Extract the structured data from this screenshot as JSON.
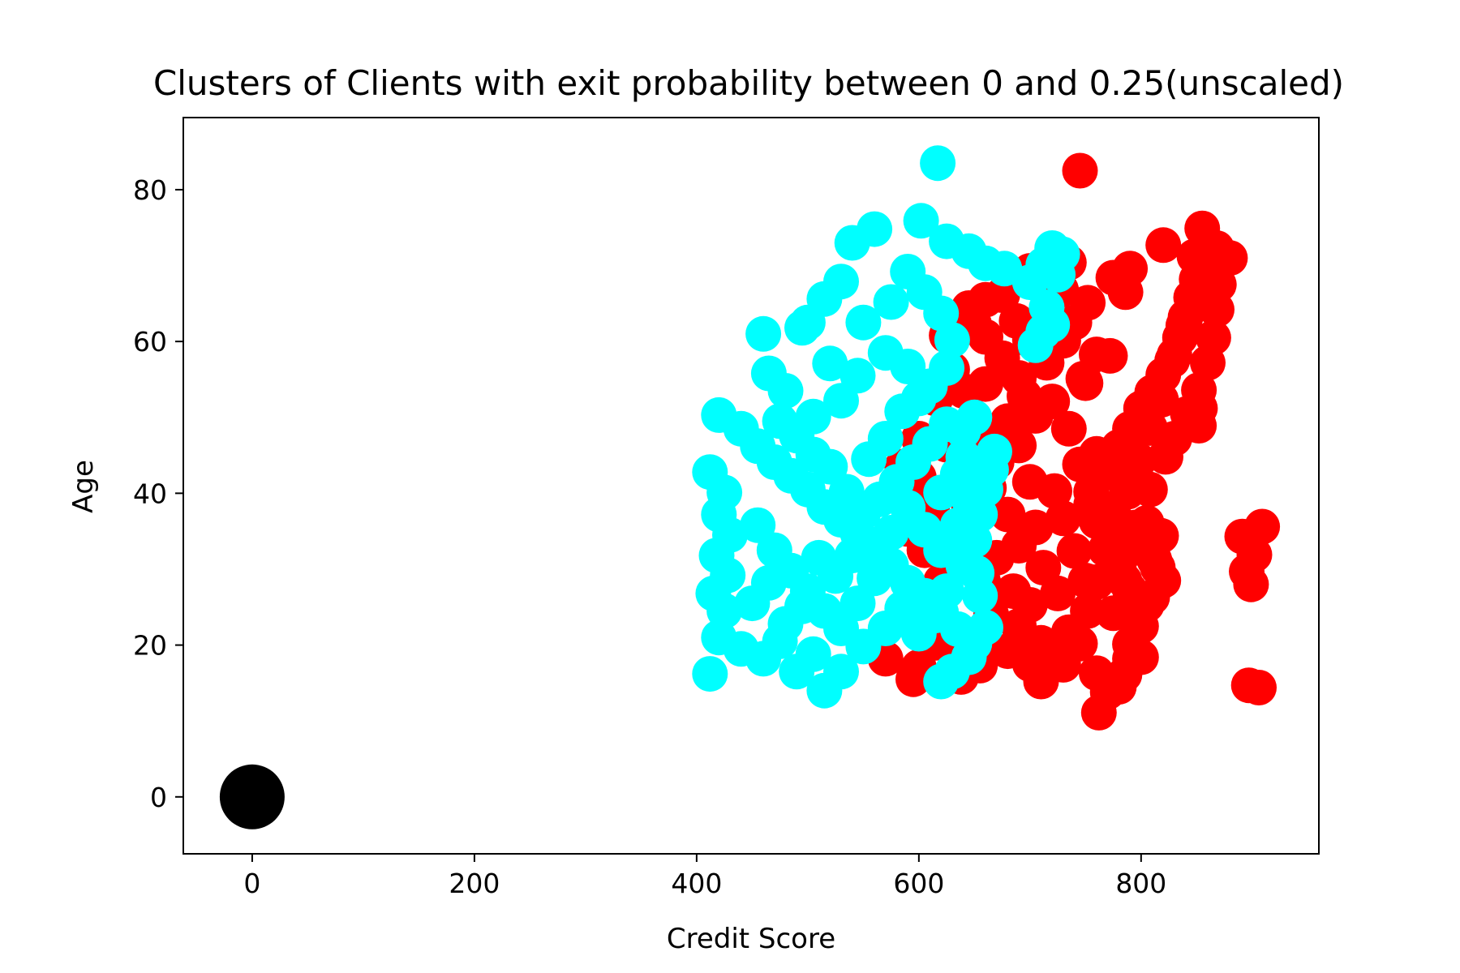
{
  "chart_data": {
    "type": "scatter",
    "title": "Clusters of Clients with exit probability between 0 and 0.25(unscaled)",
    "xlabel": "Credit Score",
    "ylabel": "Age",
    "xlim": [
      -62,
      960
    ],
    "ylim": [
      -7.5,
      89.5
    ],
    "xticks": [
      0,
      200,
      400,
      600,
      800
    ],
    "yticks": [
      0,
      20,
      40,
      60,
      80
    ],
    "grid": false,
    "series": [
      {
        "color": "#ff0000",
        "points": [
          [
            745,
            82.5
          ],
          [
            820,
            72.7
          ],
          [
            855,
            74.9
          ],
          [
            880,
            71.0
          ],
          [
            868,
            72.3
          ],
          [
            790,
            69.6
          ],
          [
            775,
            68.4
          ],
          [
            735,
            70.4
          ],
          [
            700,
            69.3
          ],
          [
            690,
            68.2
          ],
          [
            752,
            65.1
          ],
          [
            786,
            66.5
          ],
          [
            728,
            66.8
          ],
          [
            715,
            63.3
          ],
          [
            688,
            62.7
          ],
          [
            645,
            64.4
          ],
          [
            660,
            60.6
          ],
          [
            700,
            60.2
          ],
          [
            740,
            62.5
          ],
          [
            760,
            58.3
          ],
          [
            772,
            58.1
          ],
          [
            675,
            57.8
          ],
          [
            690,
            55.2
          ],
          [
            660,
            54.4
          ],
          [
            640,
            53.5
          ],
          [
            720,
            52.1
          ],
          [
            750,
            54.5
          ],
          [
            705,
            50.2
          ],
          [
            680,
            49.5
          ],
          [
            655,
            48.3
          ],
          [
            735,
            48.5
          ],
          [
            760,
            45.2
          ],
          [
            690,
            46.3
          ],
          [
            670,
            44.1
          ],
          [
            700,
            41.5
          ],
          [
            722,
            40.3
          ],
          [
            745,
            43.8
          ],
          [
            663,
            40.7
          ],
          [
            680,
            37.2
          ],
          [
            705,
            35.5
          ],
          [
            730,
            36.7
          ],
          [
            755,
            38.5
          ],
          [
            690,
            33.1
          ],
          [
            670,
            31.5
          ],
          [
            712,
            30.2
          ],
          [
            740,
            32.4
          ],
          [
            658,
            28.3
          ],
          [
            685,
            27.1
          ],
          [
            700,
            25.3
          ],
          [
            725,
            26.8
          ],
          [
            750,
            28.5
          ],
          [
            665,
            24.1
          ],
          [
            690,
            22.5
          ],
          [
            710,
            20.3
          ],
          [
            735,
            21.7
          ],
          [
            680,
            19.2
          ],
          [
            700,
            17.5
          ],
          [
            720,
            18.1
          ],
          [
            655,
            17.3
          ],
          [
            638,
            15.8
          ],
          [
            600,
            17.1
          ],
          [
            595,
            15.5
          ],
          [
            570,
            18.2
          ],
          [
            615,
            20.3
          ],
          [
            630,
            22.2
          ],
          [
            610,
            25.1
          ],
          [
            620,
            28.4
          ],
          [
            605,
            32.5
          ],
          [
            590,
            35.3
          ],
          [
            612,
            38.2
          ],
          [
            585,
            43.5
          ],
          [
            600,
            47.2
          ],
          [
            600,
            42.1
          ],
          [
            625,
            46.4
          ],
          [
            615,
            52.5
          ],
          [
            630,
            56.3
          ],
          [
            625,
            60.8
          ],
          [
            650,
            62.2
          ],
          [
            660,
            65.5
          ],
          [
            675,
            66.1
          ],
          [
            805,
            25.3
          ],
          [
            790,
            27.2
          ],
          [
            780,
            30.1
          ],
          [
            770,
            33.1
          ],
          [
            760,
            36.3
          ],
          [
            755,
            40.2
          ],
          [
            768,
            43.5
          ],
          [
            780,
            46.1
          ],
          [
            790,
            48.5
          ],
          [
            800,
            51.2
          ],
          [
            810,
            53.3
          ],
          [
            820,
            55.6
          ],
          [
            830,
            58.2
          ],
          [
            835,
            60.5
          ],
          [
            840,
            63.2
          ],
          [
            845,
            65.8
          ],
          [
            850,
            68.2
          ],
          [
            838,
            62.1
          ],
          [
            828,
            57.5
          ],
          [
            818,
            52.3
          ],
          [
            808,
            48.6
          ],
          [
            798,
            44.3
          ],
          [
            788,
            40.2
          ],
          [
            778,
            36.4
          ],
          [
            768,
            32.6
          ],
          [
            760,
            28.3
          ],
          [
            752,
            24.5
          ],
          [
            745,
            20.2
          ],
          [
            760,
            16.3
          ],
          [
            770,
            13.8
          ],
          [
            762,
            11.1
          ],
          [
            780,
            14.5
          ],
          [
            790,
            18.2
          ],
          [
            800,
            22.5
          ],
          [
            810,
            26.3
          ],
          [
            815,
            30.2
          ],
          [
            818,
            34.4
          ],
          [
            805,
            36.1
          ],
          [
            795,
            32.8
          ],
          [
            785,
            28.5
          ],
          [
            775,
            24.2
          ],
          [
            790,
            20.1
          ],
          [
            808,
            40.5
          ],
          [
            822,
            44.8
          ],
          [
            830,
            47.2
          ],
          [
            842,
            50.5
          ],
          [
            852,
            53.6
          ],
          [
            860,
            57.2
          ],
          [
            865,
            60.5
          ],
          [
            868,
            64.2
          ],
          [
            870,
            67.5
          ],
          [
            860,
            70.3
          ],
          [
            848,
            71.2
          ],
          [
            853,
            51.2
          ],
          [
            852,
            48.9
          ],
          [
            891,
            34.3
          ],
          [
            909,
            35.6
          ],
          [
            902,
            31.9
          ],
          [
            895,
            29.7
          ],
          [
            899,
            28.0
          ],
          [
            897,
            14.7
          ],
          [
            906,
            14.4
          ],
          [
            770,
            38.0
          ],
          [
            782,
            42.1
          ],
          [
            795,
            35.5
          ],
          [
            812,
            31.2
          ],
          [
            820,
            28.5
          ],
          [
            800,
            18.4
          ],
          [
            785,
            16.1
          ],
          [
            710,
            15.2
          ],
          [
            730,
            17.4
          ],
          [
            640,
            19.1
          ],
          [
            650,
            33.3
          ],
          [
            645,
            38.4
          ],
          [
            660,
            42.5
          ],
          [
            675,
            46.6
          ],
          [
            695,
            52.8
          ],
          [
            715,
            57.2
          ],
          [
            730,
            60.1
          ],
          [
            748,
            55.1
          ]
        ]
      },
      {
        "color": "#00ffff",
        "points": [
          [
            617,
            83.5
          ],
          [
            560,
            74.8
          ],
          [
            540,
            73.0
          ],
          [
            602,
            75.9
          ],
          [
            625,
            73.2
          ],
          [
            645,
            71.9
          ],
          [
            660,
            70.3
          ],
          [
            677,
            69.6
          ],
          [
            720,
            72.3
          ],
          [
            729,
            71.5
          ],
          [
            712,
            70.1
          ],
          [
            725,
            68.8
          ],
          [
            700,
            67.8
          ],
          [
            715,
            64.5
          ],
          [
            720,
            62.2
          ],
          [
            705,
            59.5
          ],
          [
            712,
            61.3
          ],
          [
            530,
            67.9
          ],
          [
            515,
            65.6
          ],
          [
            500,
            62.5
          ],
          [
            495,
            61.8
          ],
          [
            460,
            61.0
          ],
          [
            465,
            55.8
          ],
          [
            480,
            53.5
          ],
          [
            520,
            57.1
          ],
          [
            550,
            62.5
          ],
          [
            575,
            65.2
          ],
          [
            590,
            69.2
          ],
          [
            605,
            66.5
          ],
          [
            620,
            63.7
          ],
          [
            630,
            60.2
          ],
          [
            625,
            56.5
          ],
          [
            610,
            54.1
          ],
          [
            590,
            56.7
          ],
          [
            570,
            58.5
          ],
          [
            545,
            55.5
          ],
          [
            530,
            52.2
          ],
          [
            505,
            50.1
          ],
          [
            420,
            50.3
          ],
          [
            440,
            48.5
          ],
          [
            455,
            46.2
          ],
          [
            470,
            44.1
          ],
          [
            485,
            42.3
          ],
          [
            500,
            40.5
          ],
          [
            515,
            38.2
          ],
          [
            530,
            36.5
          ],
          [
            545,
            34.7
          ],
          [
            560,
            32.8
          ],
          [
            575,
            30.5
          ],
          [
            590,
            28.2
          ],
          [
            605,
            26.5
          ],
          [
            620,
            24.3
          ],
          [
            635,
            22.1
          ],
          [
            650,
            20.2
          ],
          [
            645,
            18.4
          ],
          [
            630,
            16.5
          ],
          [
            620,
            15.2
          ],
          [
            412,
            42.8
          ],
          [
            425,
            40.1
          ],
          [
            420,
            37.2
          ],
          [
            430,
            34.5
          ],
          [
            418,
            31.8
          ],
          [
            428,
            29.2
          ],
          [
            415,
            26.8
          ],
          [
            425,
            24.5
          ],
          [
            420,
            21.0
          ],
          [
            412,
            16.2
          ],
          [
            440,
            19.5
          ],
          [
            460,
            18.2
          ],
          [
            475,
            20.5
          ],
          [
            490,
            16.5
          ],
          [
            505,
            18.8
          ],
          [
            515,
            14.0
          ],
          [
            530,
            16.5
          ],
          [
            550,
            19.8
          ],
          [
            570,
            22.2
          ],
          [
            585,
            24.8
          ],
          [
            600,
            21.5
          ],
          [
            615,
            23.9
          ],
          [
            625,
            27.1
          ],
          [
            640,
            30.5
          ],
          [
            650,
            33.8
          ],
          [
            655,
            37.2
          ],
          [
            660,
            40.5
          ],
          [
            665,
            43.1
          ],
          [
            668,
            45.5
          ],
          [
            650,
            50.0
          ],
          [
            640,
            48.2
          ],
          [
            625,
            49.1
          ],
          [
            610,
            46.5
          ],
          [
            595,
            44.1
          ],
          [
            580,
            41.5
          ],
          [
            565,
            39.2
          ],
          [
            550,
            37.5
          ],
          [
            535,
            40.2
          ],
          [
            520,
            43.5
          ],
          [
            505,
            45.1
          ],
          [
            490,
            47.6
          ],
          [
            475,
            49.5
          ],
          [
            455,
            35.8
          ],
          [
            470,
            32.5
          ],
          [
            485,
            29.8
          ],
          [
            500,
            27.1
          ],
          [
            515,
            24.5
          ],
          [
            530,
            22.2
          ],
          [
            545,
            25.5
          ],
          [
            560,
            28.8
          ],
          [
            575,
            34.8
          ],
          [
            590,
            38.1
          ],
          [
            605,
            35.2
          ],
          [
            620,
            32.5
          ],
          [
            635,
            35.8
          ],
          [
            645,
            39.2
          ],
          [
            635,
            42.5
          ],
          [
            620,
            40.1
          ],
          [
            450,
            25.5
          ],
          [
            465,
            28.2
          ],
          [
            480,
            22.8
          ],
          [
            495,
            25.1
          ],
          [
            510,
            31.5
          ],
          [
            525,
            29.1
          ],
          [
            540,
            31.8
          ],
          [
            555,
            44.5
          ],
          [
            570,
            47.2
          ],
          [
            585,
            50.8
          ],
          [
            600,
            52.5
          ],
          [
            640,
            44.8
          ],
          [
            655,
            26.5
          ],
          [
            660,
            22.3
          ],
          [
            652,
            29.5
          ]
        ]
      },
      {
        "color": "#000000",
        "points": [
          [
            0,
            0
          ]
        ],
        "large": true
      }
    ]
  }
}
